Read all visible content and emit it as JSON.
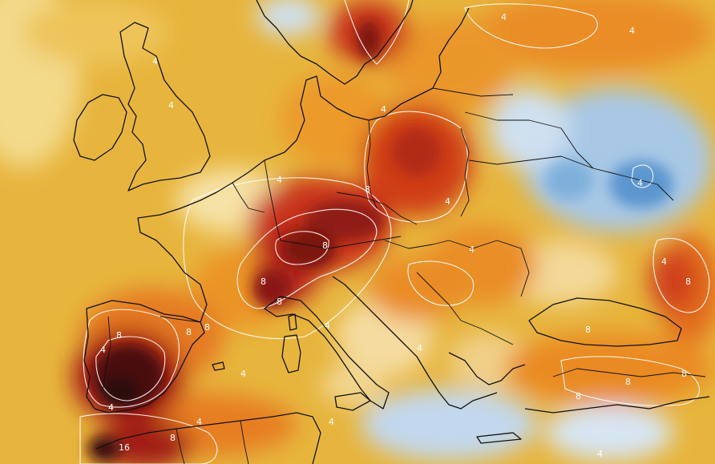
{
  "map": {
    "contour_labels": [
      {
        "key": "l1",
        "text": "4"
      },
      {
        "key": "l2",
        "text": "4"
      },
      {
        "key": "l3",
        "text": "4"
      },
      {
        "key": "l4",
        "text": "4"
      },
      {
        "key": "l5",
        "text": "4"
      },
      {
        "key": "l6",
        "text": "4"
      },
      {
        "key": "l7",
        "text": "4"
      },
      {
        "key": "l8",
        "text": "4"
      },
      {
        "key": "l9",
        "text": "4"
      },
      {
        "key": "l10",
        "text": "4"
      },
      {
        "key": "l11",
        "text": "4"
      },
      {
        "key": "l12",
        "text": "4"
      },
      {
        "key": "l13",
        "text": "4"
      },
      {
        "key": "l14",
        "text": "4"
      },
      {
        "key": "l15",
        "text": "4"
      },
      {
        "key": "l16",
        "text": "4"
      },
      {
        "key": "l17",
        "text": "8"
      },
      {
        "key": "l18",
        "text": "8"
      },
      {
        "key": "l19",
        "text": "8"
      },
      {
        "key": "l20",
        "text": "8"
      },
      {
        "key": "l21",
        "text": "8"
      },
      {
        "key": "l22",
        "text": "8"
      },
      {
        "key": "l23",
        "text": "8"
      },
      {
        "key": "l24",
        "text": "8"
      },
      {
        "key": "l25",
        "text": "8"
      },
      {
        "key": "l26",
        "text": "8"
      },
      {
        "key": "l27",
        "text": "8"
      },
      {
        "key": "l28",
        "text": "8"
      },
      {
        "key": "l29",
        "text": "8"
      },
      {
        "key": "l30",
        "text": "16"
      },
      {
        "key": "l31",
        "text": "4"
      },
      {
        "key": "l32",
        "text": "4"
      }
    ],
    "palette": {
      "warm_pale": "#f6e2a6",
      "warm_yellow": "#e9b53c",
      "warm_orange": "#e98a21",
      "warm_red": "#c9361a",
      "warm_darkred": "#7a1410",
      "warm_black": "#2b0a0d",
      "cool_pale": "#dde8f3",
      "cool_light": "#a8c8e6",
      "cool_blue": "#5b96cf",
      "coastline": "#111111",
      "contour": "#ffffff"
    }
  }
}
